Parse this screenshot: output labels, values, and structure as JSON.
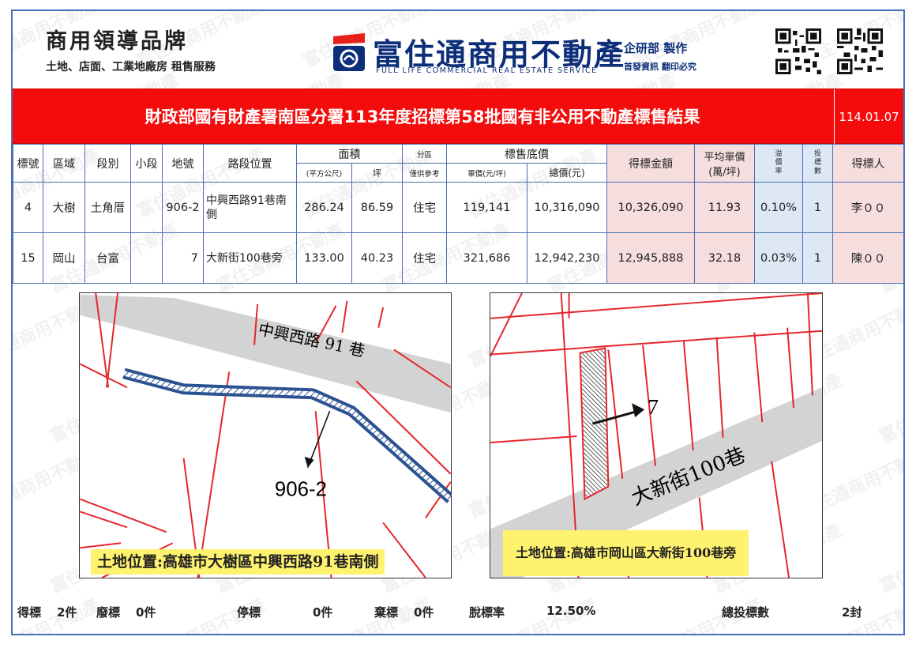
{
  "header": {
    "brand_title": "商用領導品牌",
    "brand_sub": "土地、店面、工業地廠房 租售服務",
    "company_name": "富住通商用不動產",
    "company_en": "FULL LIFE COMMERCIAL REAL ESTATE SERVICE",
    "dept": "企研部 製作",
    "dept_note": "首發資訊 翻印必究",
    "brand_color": "#0d2f7a"
  },
  "watermark_text": "富住通商用不動產",
  "title": {
    "text": "財政部國有財產署南區分署113年度招標第58批國有非公用不動產標售結果",
    "date": "114.01.07",
    "bg_color": "#f40c0c"
  },
  "table": {
    "headers": {
      "no": "標號",
      "district": "區域",
      "section": "段別",
      "subsection": "小段",
      "lot": "地號",
      "location": "路段位置",
      "area": "面積",
      "area_sqm": "(平方公尺)",
      "area_ping": "坪",
      "zone": "分區",
      "zone_note": "僅供參考",
      "base_price": "標售底價",
      "unit_price": "單價(元/坪)",
      "total_price": "總價(元)",
      "winning_amount": "得標金額",
      "avg_unit_price": "平均單價",
      "avg_unit": "(萬/坪)",
      "premium_1": "溢",
      "premium_2": "價",
      "premium_3": "率",
      "bids_1": "投",
      "bids_2": "標",
      "bids_3": "數",
      "winner": "得標人"
    },
    "rows": [
      {
        "no": "4",
        "district": "大樹",
        "section": "土角厝",
        "subsection": "",
        "lot": "906-2",
        "location": "中興西路91巷南側",
        "area_sqm": "286.24",
        "area_ping": "86.59",
        "zone": "住宅",
        "unit_price": "119,141",
        "total_price": "10,316,090",
        "winning_amount": "10,326,090",
        "avg_unit_price": "11.93",
        "premium": "0.10%",
        "bids": "1",
        "winner": "李００"
      },
      {
        "no": "15",
        "district": "岡山",
        "section": "台富",
        "subsection": "",
        "lot": "7",
        "location": "大新街100巷旁",
        "area_sqm": "133.00",
        "area_ping": "40.23",
        "zone": "住宅",
        "unit_price": "321,686",
        "total_price": "12,942,230",
        "winning_amount": "12,945,888",
        "avg_unit_price": "32.18",
        "premium": "0.03%",
        "bids": "1",
        "winner": "陳００"
      }
    ]
  },
  "maps": [
    {
      "road_label": "中興西路 91 巷",
      "lot_label": "906-2",
      "caption": "土地位置:高雄市大樹區中興西路91巷南側"
    },
    {
      "road_label": "大新街100巷",
      "lot_label": "7",
      "caption": "土地位置:高雄市岡山區大新街100巷旁"
    }
  ],
  "footer": {
    "won_label": "得標",
    "won_value": "2件",
    "void_label": "廢標",
    "void_value": "0件",
    "stopped_label": "停標",
    "stopped_value": "0件",
    "abandoned_label": "棄標",
    "abandoned_value": "0件",
    "failure_rate_label": "脫標率",
    "failure_rate_value": "12.50%",
    "total_bids_label": "總投標數",
    "total_bids_value": "2封"
  }
}
